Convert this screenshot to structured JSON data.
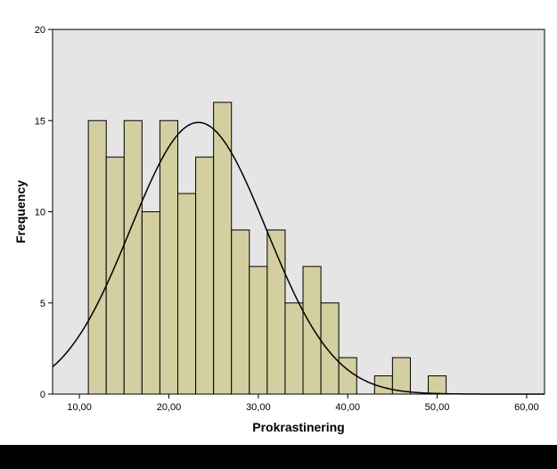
{
  "chart_data": {
    "type": "bar",
    "xlabel": "Prokrastinering",
    "ylabel": "Frequency",
    "xlim": [
      7,
      62
    ],
    "ylim": [
      0,
      20
    ],
    "xticks": [
      10,
      20,
      30,
      40,
      50,
      60
    ],
    "xtick_labels": [
      "10,00",
      "20,00",
      "30,00",
      "40,00",
      "50,00",
      "60,00"
    ],
    "yticks": [
      0,
      5,
      10,
      15,
      20
    ],
    "ytick_labels": [
      "0",
      "5",
      "10",
      "15",
      "20"
    ],
    "bins": [
      {
        "start": 11,
        "end": 13,
        "count": 15
      },
      {
        "start": 13,
        "end": 15,
        "count": 13
      },
      {
        "start": 15,
        "end": 17,
        "count": 15
      },
      {
        "start": 17,
        "end": 19,
        "count": 10
      },
      {
        "start": 19,
        "end": 21,
        "count": 15
      },
      {
        "start": 21,
        "end": 23,
        "count": 11
      },
      {
        "start": 23,
        "end": 25,
        "count": 13
      },
      {
        "start": 25,
        "end": 27,
        "count": 16
      },
      {
        "start": 27,
        "end": 29,
        "count": 9
      },
      {
        "start": 29,
        "end": 31,
        "count": 7
      },
      {
        "start": 31,
        "end": 33,
        "count": 9
      },
      {
        "start": 33,
        "end": 35,
        "count": 5
      },
      {
        "start": 35,
        "end": 37,
        "count": 7
      },
      {
        "start": 37,
        "end": 39,
        "count": 5
      },
      {
        "start": 39,
        "end": 41,
        "count": 2
      },
      {
        "start": 41,
        "end": 43,
        "count": 0
      },
      {
        "start": 43,
        "end": 45,
        "count": 1
      },
      {
        "start": 45,
        "end": 47,
        "count": 2
      },
      {
        "start": 47,
        "end": 49,
        "count": 0
      },
      {
        "start": 49,
        "end": 51,
        "count": 1
      }
    ],
    "normal_curve": {
      "mean": 23.3,
      "sd": 7.6,
      "peak": 14.9
    },
    "grid": false,
    "colors": {
      "plot_background": "#e5e5e5",
      "bar_fill": "#d4cfa1",
      "bar_stroke": "#000000",
      "curve": "#000000",
      "bottom_bar": "#000000"
    }
  }
}
